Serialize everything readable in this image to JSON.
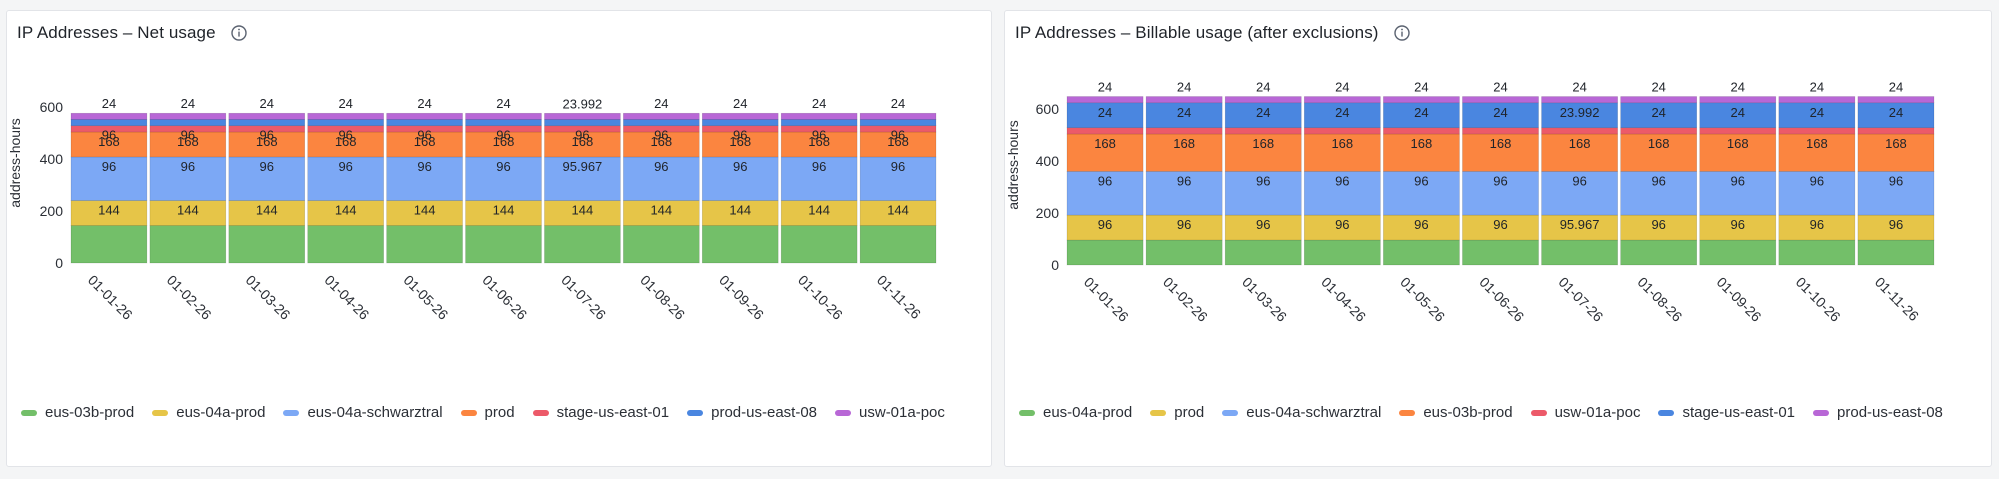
{
  "panels": [
    {
      "title": "IP Addresses – Net usage",
      "info_icon": "info-circle-icon",
      "chart_data": {
        "type": "bar",
        "stacked": true,
        "categories": [
          "01-01-26",
          "01-02-26",
          "01-03-26",
          "01-04-26",
          "01-05-26",
          "01-06-26",
          "01-07-26",
          "01-08-26",
          "01-09-26",
          "01-10-26",
          "01-11-26"
        ],
        "ylabel": "address-hours",
        "xlabel": "",
        "ylim": [
          0,
          600
        ],
        "yticks": [
          0,
          200,
          400,
          600
        ],
        "grid": false,
        "legend_position": "bottom-left",
        "series": [
          {
            "name": "eus-03b-prod",
            "color": "#73bf69",
            "values": [
              144,
              144,
              144,
              144,
              144,
              144,
              143.9,
              144,
              144,
              144,
              144
            ],
            "labels": [
              "",
              "",
              "",
              "",
              "",
              "",
              "",
              "",
              "",
              "",
              ""
            ]
          },
          {
            "name": "eus-04a-prod",
            "color": "#e6c548",
            "values": [
              96,
              96,
              96,
              96,
              96,
              96,
              96,
              96,
              96,
              96,
              96
            ],
            "labels": [
              "144",
              "144",
              "144",
              "144",
              "144",
              "144",
              "144",
              "144",
              "144",
              "144",
              "144"
            ]
          },
          {
            "name": "eus-04a-schwarztral",
            "color": "#7ca8f5",
            "values": [
              168,
              168,
              168,
              168,
              168,
              168,
              168,
              168,
              168,
              168,
              168
            ],
            "labels": [
              "96",
              "96",
              "96",
              "96",
              "96",
              "96",
              "95.967",
              "96",
              "96",
              "96",
              "96"
            ]
          },
          {
            "name": "prod",
            "color": "#fb8540",
            "values": [
              96,
              96,
              96,
              96,
              96,
              96,
              96,
              96,
              96,
              96,
              96
            ],
            "labels": [
              "168",
              "168",
              "168",
              "168",
              "168",
              "168",
              "168",
              "168",
              "168",
              "168",
              "168"
            ]
          },
          {
            "name": "stage-us-east-01",
            "color": "#ec5a69",
            "values": [
              24,
              24,
              24,
              24,
              24,
              24,
              24,
              24,
              24,
              24,
              24
            ],
            "labels": [
              "96",
              "96",
              "96",
              "96",
              "96",
              "96",
              "96",
              "96",
              "96",
              "96",
              "96"
            ]
          },
          {
            "name": "prod-us-east-08",
            "color": "#4a86e0",
            "values": [
              24,
              24,
              24,
              24,
              24,
              24,
              23.992,
              24,
              24,
              24,
              24
            ],
            "labels": [
              "",
              "",
              "",
              "",
              "",
              "",
              "",
              "",
              "",
              "",
              ""
            ]
          },
          {
            "name": "usw-01a-poc",
            "color": "#b867d6",
            "values": [
              24,
              24,
              24,
              24,
              24,
              24,
              24,
              24,
              24,
              24,
              24
            ],
            "labels": [
              "24",
              "24",
              "24",
              "24",
              "24",
              "24",
              "23.992",
              "24",
              "24",
              "24",
              "24"
            ]
          }
        ]
      }
    },
    {
      "title": "IP Addresses – Billable usage (after exclusions)",
      "info_icon": "info-circle-icon",
      "chart_data": {
        "type": "bar",
        "stacked": true,
        "categories": [
          "01-01-26",
          "01-02-26",
          "01-03-26",
          "01-04-26",
          "01-05-26",
          "01-06-26",
          "01-07-26",
          "01-08-26",
          "01-09-26",
          "01-10-26",
          "01-11-26"
        ],
        "ylabel": "address-hours",
        "xlabel": "",
        "ylim": [
          0,
          600
        ],
        "yticks": [
          0,
          200,
          400,
          600
        ],
        "grid": false,
        "legend_position": "bottom-left",
        "series": [
          {
            "name": "eus-04a-prod",
            "color": "#73bf69",
            "values": [
              96,
              96,
              96,
              96,
              96,
              96,
              96,
              96,
              96,
              96,
              96
            ],
            "labels": [
              "",
              "",
              "",
              "",
              "",
              "",
              "",
              "",
              "",
              "",
              ""
            ]
          },
          {
            "name": "prod",
            "color": "#e6c548",
            "values": [
              96,
              96,
              96,
              96,
              96,
              96,
              96,
              96,
              96,
              96,
              96
            ],
            "labels": [
              "96",
              "96",
              "96",
              "96",
              "96",
              "96",
              "95.967",
              "96",
              "96",
              "96",
              "96"
            ]
          },
          {
            "name": "eus-04a-schwarztral",
            "color": "#7ca8f5",
            "values": [
              168,
              168,
              168,
              168,
              168,
              168,
              167.9,
              168,
              168,
              168,
              168
            ],
            "labels": [
              "96",
              "96",
              "96",
              "96",
              "96",
              "96",
              "96",
              "96",
              "96",
              "96",
              "96"
            ]
          },
          {
            "name": "eus-03b-prod",
            "color": "#fb8540",
            "values": [
              144,
              144,
              144,
              144,
              144,
              144,
              144,
              144,
              144,
              144,
              144
            ],
            "labels": [
              "168",
              "168",
              "168",
              "168",
              "168",
              "168",
              "168",
              "168",
              "168",
              "168",
              "168"
            ]
          },
          {
            "name": "usw-01a-poc",
            "color": "#ec5a69",
            "values": [
              24,
              24,
              24,
              24,
              24,
              24,
              24,
              24,
              24,
              24,
              24
            ],
            "labels": [
              "",
              "",
              "",
              "",
              "",
              "",
              "",
              "",
              "",
              "",
              ""
            ]
          },
          {
            "name": "stage-us-east-01",
            "color": "#4a86e0",
            "values": [
              96,
              96,
              96,
              96,
              96,
              96,
              96,
              96,
              96,
              96,
              96
            ],
            "labels": [
              "24",
              "24",
              "24",
              "24",
              "24",
              "24",
              "23.992",
              "24",
              "24",
              "24",
              "24"
            ]
          },
          {
            "name": "prod-us-east-08",
            "color": "#b867d6",
            "values": [
              24,
              24,
              24,
              24,
              24,
              24,
              24,
              24,
              24,
              24,
              24
            ],
            "labels": [
              "24",
              "24",
              "24",
              "24",
              "24",
              "24",
              "24",
              "24",
              "24",
              "24",
              "24"
            ]
          }
        ]
      }
    }
  ]
}
